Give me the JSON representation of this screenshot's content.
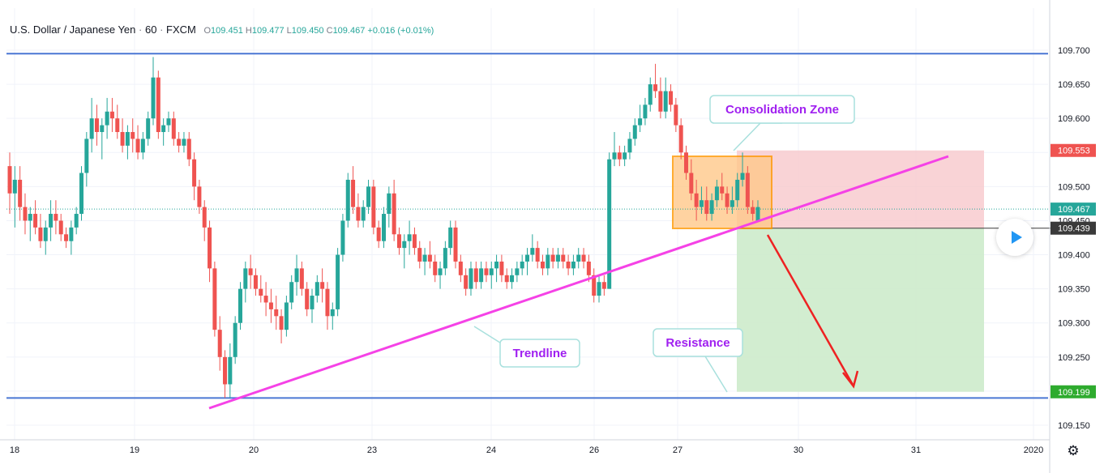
{
  "header": {
    "symbol": "U.S. Dollar / Japanese Yen",
    "interval": "60",
    "exchange": "FXCM",
    "o_label": "O",
    "o_value": "109.451",
    "h_label": "H",
    "h_value": "109.477",
    "l_label": "L",
    "l_value": "109.450",
    "c_label": "C",
    "c_value": "109.467",
    "change": "+0.016 (+0.01%)"
  },
  "settings_icon": "gear-icon",
  "colors": {
    "up": "#26a69a",
    "down": "#ef5350",
    "hline": "#4a77d4",
    "trendline": "#f542e6",
    "arrow": "#ee2222",
    "label_text": "#a020f0",
    "stop_zone": "#f8c8cc",
    "target_zone": "#cdebcb",
    "consolidation": "#ffc98a"
  },
  "chart_data": {
    "type": "candlestick",
    "price_scale": {
      "ymin": 109.125,
      "ymax": 109.725,
      "ticks": [
        "109.150",
        "109.200",
        "109.250",
        "109.300",
        "109.350",
        "109.400",
        "109.450",
        "109.500",
        "109.550",
        "109.600",
        "109.650",
        "109.700"
      ]
    },
    "time_axis": {
      "labels": [
        "18",
        "19",
        "20",
        "23",
        "24",
        "26",
        "27",
        "30",
        "31",
        "2020"
      ]
    },
    "price_badges": [
      {
        "text": "109.553",
        "price": 109.553,
        "color": "#ef5350"
      },
      {
        "text": "109.467",
        "price": 109.467,
        "color": "#26a69a"
      },
      {
        "text": "109.439",
        "price": 109.439,
        "color": "#3a3a3a"
      },
      {
        "text": "109.199",
        "price": 109.199,
        "color": "#2eab2e"
      }
    ],
    "horizontal_lines": [
      109.695,
      109.19
    ],
    "trendline": {
      "p1": {
        "date": "19",
        "price": 109.175
      },
      "p2": {
        "date": "31",
        "price": 109.543
      }
    },
    "annotations": [
      "Consolidation Zone",
      "Trendline",
      "Resistance"
    ],
    "candles_note": "approximate hourly OHLC read from chart",
    "ohlc_price_levels": [
      [
        109.53,
        109.55,
        109.46,
        109.49
      ],
      [
        109.49,
        109.53,
        109.44,
        109.51
      ],
      [
        109.51,
        109.53,
        109.45,
        109.47
      ],
      [
        109.47,
        109.49,
        109.43,
        109.45
      ],
      [
        109.45,
        109.47,
        109.42,
        109.46
      ],
      [
        109.46,
        109.48,
        109.43,
        109.44
      ],
      [
        109.44,
        109.46,
        109.41,
        109.42
      ],
      [
        109.42,
        109.45,
        109.4,
        109.44
      ],
      [
        109.44,
        109.48,
        109.42,
        109.46
      ],
      [
        109.46,
        109.48,
        109.43,
        109.45
      ],
      [
        109.45,
        109.46,
        109.42,
        109.43
      ],
      [
        109.43,
        109.44,
        109.41,
        109.42
      ],
      [
        109.42,
        109.45,
        109.4,
        109.44
      ],
      [
        109.44,
        109.47,
        109.43,
        109.46
      ],
      [
        109.46,
        109.53,
        109.45,
        109.52
      ],
      [
        109.52,
        109.58,
        109.5,
        109.57
      ],
      [
        109.57,
        109.63,
        109.55,
        109.6
      ],
      [
        109.6,
        109.62,
        109.56,
        109.58
      ],
      [
        109.58,
        109.6,
        109.54,
        109.59
      ],
      [
        109.59,
        109.63,
        109.57,
        109.61
      ],
      [
        109.61,
        109.63,
        109.58,
        109.6
      ],
      [
        109.6,
        109.62,
        109.57,
        109.58
      ],
      [
        109.58,
        109.6,
        109.55,
        109.56
      ],
      [
        109.56,
        109.59,
        109.54,
        109.58
      ],
      [
        109.58,
        109.6,
        109.55,
        109.57
      ],
      [
        109.57,
        109.59,
        109.54,
        109.55
      ],
      [
        109.55,
        109.58,
        109.54,
        109.57
      ],
      [
        109.57,
        109.61,
        109.56,
        109.6
      ],
      [
        109.6,
        109.69,
        109.59,
        109.66
      ],
      [
        109.66,
        109.67,
        109.57,
        109.58
      ],
      [
        109.58,
        109.6,
        109.56,
        109.59
      ],
      [
        109.59,
        109.61,
        109.58,
        109.6
      ],
      [
        109.6,
        109.61,
        109.56,
        109.57
      ],
      [
        109.57,
        109.58,
        109.55,
        109.56
      ],
      [
        109.56,
        109.58,
        109.55,
        109.57
      ],
      [
        109.57,
        109.58,
        109.53,
        109.54
      ],
      [
        109.54,
        109.55,
        109.48,
        109.5
      ],
      [
        109.5,
        109.51,
        109.46,
        109.47
      ],
      [
        109.47,
        109.48,
        109.42,
        109.44
      ],
      [
        109.44,
        109.45,
        109.36,
        109.38
      ],
      [
        109.38,
        109.39,
        109.28,
        109.29
      ],
      [
        109.29,
        109.31,
        109.23,
        109.25
      ],
      [
        109.25,
        109.26,
        109.19,
        109.21
      ],
      [
        109.21,
        109.27,
        109.19,
        109.25
      ],
      [
        109.25,
        109.31,
        109.24,
        109.3
      ],
      [
        109.3,
        109.36,
        109.29,
        109.35
      ],
      [
        109.35,
        109.39,
        109.33,
        109.38
      ],
      [
        109.38,
        109.4,
        109.35,
        109.37
      ],
      [
        109.37,
        109.38,
        109.34,
        109.35
      ],
      [
        109.35,
        109.37,
        109.33,
        109.34
      ],
      [
        109.34,
        109.36,
        109.31,
        109.33
      ],
      [
        109.33,
        109.35,
        109.3,
        109.32
      ],
      [
        109.32,
        109.34,
        109.29,
        109.31
      ],
      [
        109.31,
        109.32,
        109.27,
        109.29
      ],
      [
        109.29,
        109.34,
        109.28,
        109.33
      ],
      [
        109.33,
        109.37,
        109.32,
        109.36
      ],
      [
        109.36,
        109.4,
        109.34,
        109.38
      ],
      [
        109.38,
        109.39,
        109.34,
        109.35
      ],
      [
        109.35,
        109.36,
        109.31,
        109.32
      ],
      [
        109.32,
        109.35,
        109.3,
        109.34
      ],
      [
        109.34,
        109.37,
        109.33,
        109.36
      ],
      [
        109.36,
        109.38,
        109.33,
        109.35
      ],
      [
        109.35,
        109.36,
        109.29,
        109.31
      ],
      [
        109.31,
        109.33,
        109.29,
        109.32
      ],
      [
        109.32,
        109.41,
        109.31,
        109.4
      ],
      [
        109.4,
        109.46,
        109.39,
        109.45
      ],
      [
        109.45,
        109.52,
        109.44,
        109.51
      ],
      [
        109.51,
        109.53,
        109.46,
        109.47
      ],
      [
        109.47,
        109.49,
        109.44,
        109.45
      ],
      [
        109.45,
        109.48,
        109.44,
        109.47
      ],
      [
        109.47,
        109.51,
        109.46,
        109.5
      ],
      [
        109.5,
        109.51,
        109.43,
        109.44
      ],
      [
        109.44,
        109.45,
        109.41,
        109.42
      ],
      [
        109.42,
        109.47,
        109.41,
        109.46
      ],
      [
        109.46,
        109.5,
        109.44,
        109.49
      ],
      [
        109.49,
        109.51,
        109.42,
        109.43
      ],
      [
        109.43,
        109.44,
        109.4,
        109.41
      ],
      [
        109.41,
        109.43,
        109.38,
        109.42
      ],
      [
        109.42,
        109.45,
        109.4,
        109.43
      ],
      [
        109.43,
        109.44,
        109.4,
        109.41
      ],
      [
        109.41,
        109.42,
        109.38,
        109.39
      ],
      [
        109.39,
        109.41,
        109.37,
        109.4
      ],
      [
        109.4,
        109.42,
        109.38,
        109.39
      ],
      [
        109.39,
        109.4,
        109.36,
        109.37
      ],
      [
        109.37,
        109.39,
        109.35,
        109.38
      ],
      [
        109.38,
        109.42,
        109.37,
        109.41
      ],
      [
        109.41,
        109.45,
        109.4,
        109.44
      ],
      [
        109.44,
        109.45,
        109.38,
        109.39
      ],
      [
        109.39,
        109.4,
        109.36,
        109.37
      ],
      [
        109.37,
        109.38,
        109.34,
        109.35
      ],
      [
        109.35,
        109.39,
        109.34,
        109.38
      ],
      [
        109.38,
        109.39,
        109.35,
        109.36
      ],
      [
        109.36,
        109.39,
        109.35,
        109.38
      ],
      [
        109.38,
        109.39,
        109.36,
        109.37
      ],
      [
        109.37,
        109.39,
        109.35,
        109.38
      ],
      [
        109.38,
        109.4,
        109.36,
        109.39
      ],
      [
        109.39,
        109.4,
        109.36,
        109.37
      ],
      [
        109.37,
        109.38,
        109.35,
        109.36
      ],
      [
        109.36,
        109.38,
        109.35,
        109.37
      ],
      [
        109.37,
        109.39,
        109.36,
        109.38
      ],
      [
        109.38,
        109.4,
        109.37,
        109.39
      ],
      [
        109.39,
        109.41,
        109.37,
        109.4
      ],
      [
        109.4,
        109.43,
        109.39,
        109.41
      ],
      [
        109.41,
        109.42,
        109.38,
        109.39
      ],
      [
        109.39,
        109.4,
        109.37,
        109.38
      ],
      [
        109.38,
        109.41,
        109.37,
        109.4
      ],
      [
        109.4,
        109.41,
        109.38,
        109.39
      ],
      [
        109.39,
        109.41,
        109.38,
        109.4
      ],
      [
        109.4,
        109.41,
        109.38,
        109.39
      ],
      [
        109.39,
        109.4,
        109.37,
        109.38
      ],
      [
        109.38,
        109.4,
        109.37,
        109.39
      ],
      [
        109.39,
        109.41,
        109.38,
        109.4
      ],
      [
        109.4,
        109.41,
        109.38,
        109.39
      ],
      [
        109.39,
        109.4,
        109.36,
        109.37
      ],
      [
        109.37,
        109.38,
        109.33,
        109.34
      ],
      [
        109.34,
        109.37,
        109.33,
        109.36
      ],
      [
        109.36,
        109.37,
        109.34,
        109.35
      ],
      [
        109.35,
        109.55,
        109.35,
        109.54
      ],
      [
        109.54,
        109.58,
        109.53,
        109.55
      ],
      [
        109.55,
        109.56,
        109.53,
        109.54
      ],
      [
        109.54,
        109.56,
        109.53,
        109.55
      ],
      [
        109.55,
        109.58,
        109.54,
        109.57
      ],
      [
        109.57,
        109.6,
        109.56,
        109.59
      ],
      [
        109.59,
        109.62,
        109.58,
        109.6
      ],
      [
        109.6,
        109.63,
        109.59,
        109.62
      ],
      [
        109.62,
        109.66,
        109.61,
        109.65
      ],
      [
        109.65,
        109.68,
        109.63,
        109.64
      ],
      [
        109.64,
        109.66,
        109.6,
        109.61
      ],
      [
        109.61,
        109.66,
        109.6,
        109.64
      ],
      [
        109.64,
        109.65,
        109.61,
        109.62
      ],
      [
        109.62,
        109.63,
        109.58,
        109.59
      ],
      [
        109.59,
        109.6,
        109.54,
        109.55
      ],
      [
        109.55,
        109.56,
        109.51,
        109.52
      ],
      [
        109.52,
        109.54,
        109.48,
        109.49
      ],
      [
        109.49,
        109.51,
        109.45,
        109.47
      ],
      [
        109.47,
        109.5,
        109.46,
        109.48
      ],
      [
        109.48,
        109.5,
        109.45,
        109.46
      ],
      [
        109.46,
        109.49,
        109.45,
        109.48
      ],
      [
        109.48,
        109.51,
        109.47,
        109.5
      ],
      [
        109.5,
        109.52,
        109.48,
        109.49
      ],
      [
        109.49,
        109.5,
        109.46,
        109.47
      ],
      [
        109.47,
        109.5,
        109.46,
        109.48
      ],
      [
        109.48,
        109.52,
        109.47,
        109.51
      ],
      [
        109.51,
        109.55,
        109.5,
        109.52
      ],
      [
        109.52,
        109.53,
        109.46,
        109.47
      ],
      [
        109.47,
        109.48,
        109.45,
        109.46
      ],
      [
        109.45,
        109.48,
        109.45,
        109.47
      ]
    ]
  },
  "annotation_labels": {
    "consolidation": "Consolidation Zone",
    "trendline": "Trendline",
    "resistance": "Resistance"
  }
}
